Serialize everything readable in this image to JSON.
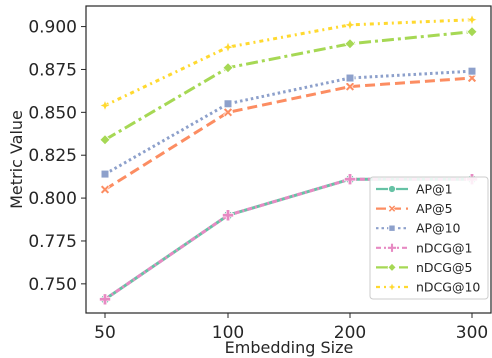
{
  "chart_data": {
    "type": "line",
    "x": [
      "50",
      "100",
      "200",
      "300"
    ],
    "xlabel": "Embedding Size",
    "ylabel": "Metric Value",
    "ylim": [
      0.733,
      0.912
    ],
    "yticks": [
      "0.750",
      "0.775",
      "0.800",
      "0.825",
      "0.850",
      "0.875",
      "0.900"
    ],
    "grid": false,
    "legend_position": "lower-right",
    "series": [
      {
        "name": "AP@1",
        "values": [
          0.741,
          0.79,
          0.811,
          0.811
        ],
        "color": "#66c2a5",
        "dash": "solid",
        "marker": "circle"
      },
      {
        "name": "AP@5",
        "values": [
          0.805,
          0.85,
          0.865,
          0.87
        ],
        "color": "#fc8d62",
        "dash": "dashed",
        "marker": "x"
      },
      {
        "name": "AP@10",
        "values": [
          0.814,
          0.855,
          0.87,
          0.874
        ],
        "color": "#8da0cb",
        "dash": "dotted",
        "marker": "square"
      },
      {
        "name": "nDCG@1",
        "values": [
          0.741,
          0.79,
          0.811,
          0.811
        ],
        "color": "#e78ac3",
        "dash": "dashdot2",
        "marker": "plus"
      },
      {
        "name": "nDCG@5",
        "values": [
          0.834,
          0.876,
          0.89,
          0.897
        ],
        "color": "#a6d854",
        "dash": "dashdot",
        "marker": "diamond"
      },
      {
        "name": "nDCG@10",
        "values": [
          0.854,
          0.888,
          0.901,
          0.904
        ],
        "color": "#ffd92f",
        "dash": "dashdot3",
        "marker": "star"
      }
    ]
  }
}
